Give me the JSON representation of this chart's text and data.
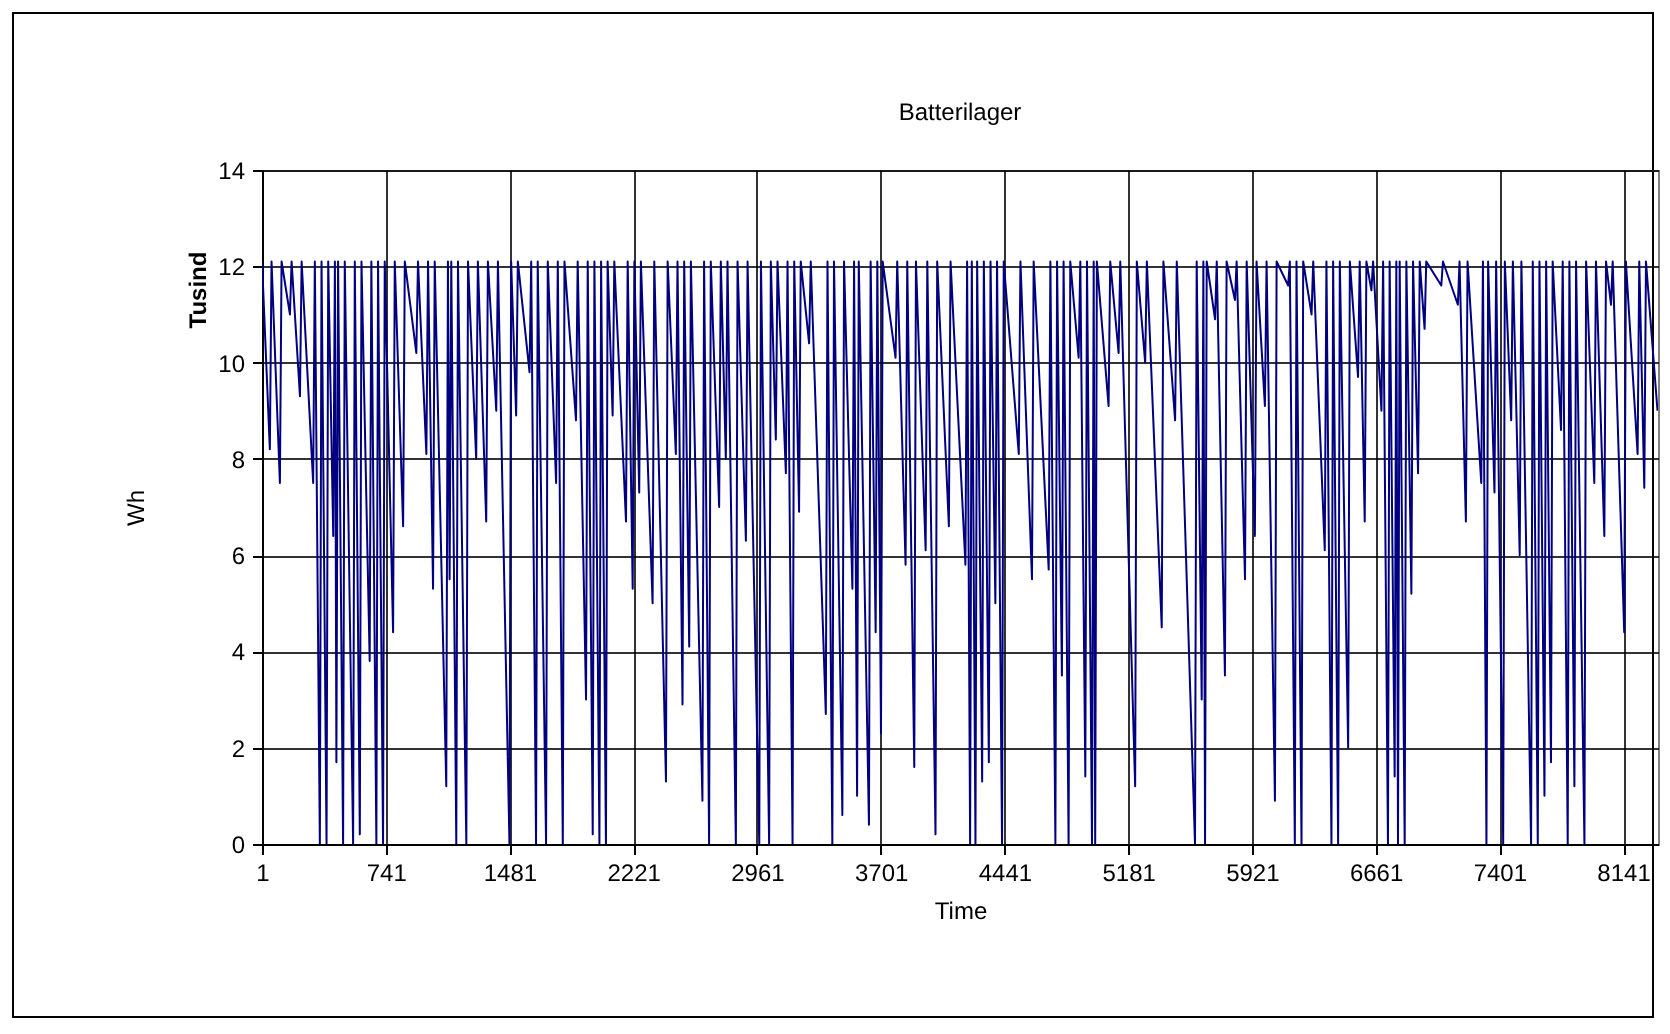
{
  "chart_data": {
    "type": "line",
    "title": "Batterilager",
    "xlabel": "Time",
    "ylabel": "Wh",
    "annotations": [
      "Tusind"
    ],
    "x": [
      1,
      48,
      58,
      108,
      118,
      168,
      178,
      228,
      238,
      307,
      317,
      347,
      357,
      387,
      397,
      427,
      437,
      446,
      456,
      486,
      496,
      546,
      556,
      586,
      596,
      645,
      655,
      685,
      695,
      725,
      735,
      785,
      795,
      845,
      855,
      924,
      934,
      984,
      994,
      1024,
      1034,
      1103,
      1113,
      1123,
      1133,
      1163,
      1173,
      1223,
      1233,
      1282,
      1292,
      1342,
      1352,
      1402,
      1412,
      1481,
      1491,
      1521,
      1531,
      1601,
      1611,
      1640,
      1650,
      1700,
      1710,
      1760,
      1770,
      1800,
      1810,
      1879,
      1889,
      1939,
      1949,
      1979,
      1989,
      2019,
      2029,
      2058,
      2068,
      2098,
      2108,
      2178,
      2188,
      2218,
      2228,
      2257,
      2267,
      2337,
      2347,
      2417,
      2427,
      2476,
      2486,
      2516,
      2526,
      2556,
      2566,
      2635,
      2645,
      2675,
      2685,
      2735,
      2745,
      2775,
      2785,
      2835,
      2845,
      2895,
      2905,
      2975,
      2985,
      3034,
      3044,
      3074,
      3084,
      3134,
      3144,
      3174,
      3184,
      3213,
      3223,
      3273,
      3283,
      3373,
      3383,
      3412,
      3422,
      3472,
      3482,
      3532,
      3542,
      3560,
      3570,
      3631,
      3641,
      3671,
      3681,
      3703,
      3713,
      3790,
      3800,
      3850,
      3860,
      3902,
      3912,
      3970,
      3980,
      4029,
      4039,
      4109,
      4119,
      4208,
      4218,
      4236,
      4246,
      4268,
      4278,
      4308,
      4318,
      4348,
      4358,
      4387,
      4397,
      4427,
      4437,
      4527,
      4537,
      4606,
      4616,
      4706,
      4716,
      4746,
      4756,
      4785,
      4795,
      4825,
      4835,
      4885,
      4895,
      4925,
      4935,
      4965,
      4975,
      4984,
      4994,
      5064,
      5074,
      5124,
      5134,
      5223,
      5233,
      5283,
      5293,
      5382,
      5392,
      5462,
      5472,
      5581,
      5591,
      5621,
      5631,
      5641,
      5651,
      5701,
      5711,
      5760,
      5770,
      5820,
      5830,
      5880,
      5890,
      5939,
      5949,
      5999,
      6009,
      6059,
      6069,
      6138,
      6148,
      6178,
      6188,
      6218,
      6228,
      6278,
      6288,
      6357,
      6367,
      6397,
      6407,
      6437,
      6447,
      6497,
      6507,
      6556,
      6566,
      6596,
      6606,
      6636,
      6646,
      6696,
      6706,
      6735,
      6745,
      6775,
      6785,
      6795,
      6805,
      6835,
      6845,
      6875,
      6885,
      6915,
      6925,
      6954,
      6964,
      7054,
      7064,
      7153,
      7163,
      7201,
      7211,
      7293,
      7303,
      7324,
      7334,
      7372,
      7382,
      7424,
      7434,
      7472,
      7482,
      7523,
      7533,
      7591,
      7601,
      7631,
      7641,
      7671,
      7681,
      7710,
      7720,
      7770,
      7780,
      7810,
      7820,
      7850,
      7860,
      7910,
      7920,
      7969,
      7979,
      8029,
      8039,
      8069,
      8079,
      8148,
      8158,
      8228,
      8238,
      8268,
      8278,
      8347
    ],
    "series": [
      {
        "color": "#000080",
        "values": [
          12.1,
          8.2,
          12.1,
          7.5,
          12.1,
          11,
          12.1,
          9.3,
          12.1,
          7.5,
          12.1,
          0,
          12.1,
          0,
          12.1,
          6.4,
          12.1,
          1.7,
          12.1,
          0,
          12.1,
          0,
          12.1,
          0.2,
          12.1,
          3.8,
          12.1,
          0,
          12.1,
          0,
          12.1,
          4.4,
          12.1,
          6.6,
          12.1,
          10.2,
          12.1,
          8.1,
          12.1,
          5.3,
          12.1,
          1.2,
          12.1,
          5.5,
          12.1,
          0,
          12.1,
          0,
          12.1,
          8,
          12.1,
          6.7,
          12.1,
          9,
          12.1,
          0,
          12.1,
          8.9,
          12.1,
          9.8,
          12.1,
          0,
          12.1,
          0,
          12.1,
          7.5,
          12.1,
          0,
          12.1,
          8.8,
          12.1,
          3,
          12.1,
          0.2,
          12.1,
          0,
          12.1,
          0,
          12.1,
          8.9,
          12.1,
          6.7,
          12.1,
          5.3,
          12.1,
          7.3,
          12.1,
          5,
          12.1,
          1.3,
          12.1,
          8.1,
          12.1,
          2.9,
          12.1,
          4.1,
          12.1,
          0.9,
          12.1,
          0,
          12.1,
          7,
          12.1,
          8,
          12.1,
          0,
          12.1,
          6.3,
          12.1,
          0,
          12.1,
          0,
          12.1,
          8.4,
          12.1,
          7.7,
          12.1,
          0,
          12.1,
          6.9,
          12.1,
          10.4,
          12.1,
          2.7,
          12.1,
          0,
          12.1,
          0.6,
          12.1,
          5.3,
          12.1,
          1,
          12.1,
          0.4,
          12.1,
          4.4,
          12.1,
          2.3,
          12.1,
          10.1,
          12.1,
          5.8,
          12.1,
          1.6,
          12.1,
          6.1,
          12.1,
          0.2,
          12.1,
          6.6,
          12.1,
          5.8,
          12.1,
          0,
          12.1,
          0,
          12.1,
          1.3,
          12.1,
          1.7,
          12.1,
          5,
          12.1,
          0,
          12.1,
          8.1,
          12.1,
          5.5,
          12.1,
          5.7,
          12.1,
          0,
          12.1,
          3.5,
          12.1,
          0,
          12.1,
          10.1,
          12.1,
          1.4,
          12.1,
          0,
          12.1,
          0,
          12.1,
          9.1,
          12.1,
          10.2,
          12.1,
          1.2,
          12.1,
          10,
          12.1,
          4.5,
          12.1,
          8.8,
          12.1,
          0,
          12.1,
          3,
          12.1,
          0,
          12.1,
          10.9,
          12.1,
          3.5,
          12.1,
          11.3,
          12.1,
          5.5,
          12.1,
          6.4,
          12.1,
          9.1,
          12.1,
          0.9,
          12.1,
          11.6,
          12.1,
          0,
          12.1,
          0,
          12.1,
          11,
          12.1,
          6.1,
          12.1,
          0,
          12.1,
          0,
          12.1,
          2,
          12.1,
          9.7,
          12.1,
          6.7,
          12.1,
          11.5,
          12.1,
          9,
          12.1,
          0,
          12.1,
          1.4,
          12.1,
          0,
          12.1,
          0,
          12.1,
          5.2,
          12.1,
          7.7,
          12.1,
          10.7,
          12.1,
          11.6,
          12.1,
          11.2,
          12.1,
          6.7,
          12.1,
          7.5,
          12.1,
          0,
          12.1,
          7.3,
          12.1,
          0,
          12.1,
          8.8,
          12.1,
          6,
          12.1,
          0,
          12.1,
          0,
          12.1,
          1,
          12.1,
          1.7,
          12.1,
          8.6,
          12.1,
          0,
          12.1,
          1.2,
          12.1,
          0,
          12.1,
          7.5,
          12.1,
          6.4,
          12.1,
          11.2,
          12.1,
          4.4,
          12.1,
          8.1,
          12.1,
          7.4,
          12.1,
          9
        ]
      }
    ],
    "xlim": [
      1,
      8350
    ],
    "xticks": [
      1,
      741,
      1481,
      2221,
      2961,
      3701,
      4441,
      5181,
      5921,
      6661,
      7401,
      8141
    ],
    "ylim": [
      0,
      14
    ],
    "yticks": [
      0,
      2,
      4,
      6,
      8,
      10,
      12,
      14
    ],
    "grid": true
  }
}
